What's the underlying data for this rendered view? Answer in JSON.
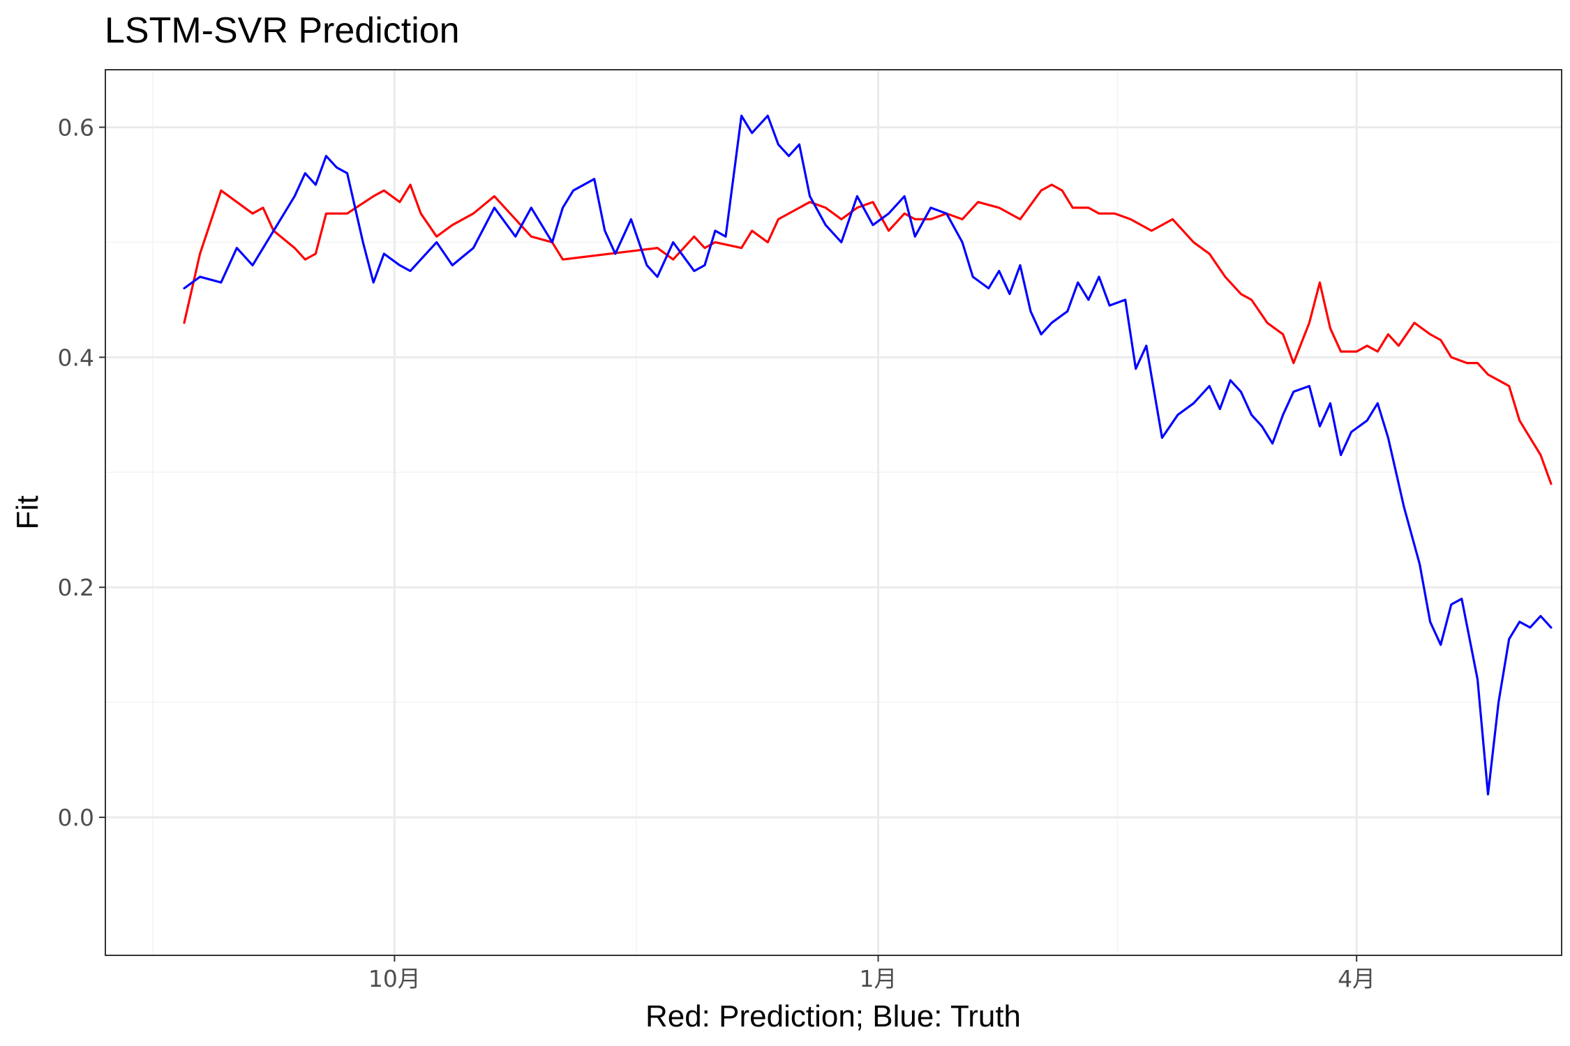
{
  "chart_data": {
    "type": "line",
    "title": "LSTM-SVR Prediction",
    "xlabel": "Red: Prediction; Blue: Truth",
    "ylabel": "Fit",
    "x_axis": {
      "type": "date",
      "range": [
        "2023-08-07",
        "2024-05-10"
      ],
      "ticks": [
        {
          "value": "2023-10-01",
          "label": "10月"
        },
        {
          "value": "2024-01-01",
          "label": "1月"
        },
        {
          "value": "2024-04-01",
          "label": "4月"
        }
      ]
    },
    "y_axis": {
      "range": [
        -0.12,
        0.65
      ],
      "ticks": [
        {
          "value": 0.0,
          "label": "0.0"
        },
        {
          "value": 0.2,
          "label": "0.2"
        },
        {
          "value": 0.4,
          "label": "0.4"
        },
        {
          "value": 0.6,
          "label": "0.6"
        }
      ]
    },
    "grid": true,
    "series": [
      {
        "color": "#ff0000",
        "points": [
          [
            "2023-08-22",
            0.43
          ],
          [
            "2023-08-25",
            0.49
          ],
          [
            "2023-08-29",
            0.545
          ],
          [
            "2023-09-01",
            0.535
          ],
          [
            "2023-09-04",
            0.525
          ],
          [
            "2023-09-06",
            0.53
          ],
          [
            "2023-09-08",
            0.51
          ],
          [
            "2023-09-12",
            0.495
          ],
          [
            "2023-09-14",
            0.485
          ],
          [
            "2023-09-16",
            0.49
          ],
          [
            "2023-09-18",
            0.525
          ],
          [
            "2023-09-22",
            0.525
          ],
          [
            "2023-09-27",
            0.54
          ],
          [
            "2023-09-29",
            0.545
          ],
          [
            "2023-10-02",
            0.535
          ],
          [
            "2023-10-04",
            0.55
          ],
          [
            "2023-10-06",
            0.525
          ],
          [
            "2023-10-09",
            0.505
          ],
          [
            "2023-10-12",
            0.515
          ],
          [
            "2023-10-16",
            0.525
          ],
          [
            "2023-10-20",
            0.54
          ],
          [
            "2023-10-24",
            0.52
          ],
          [
            "2023-10-27",
            0.505
          ],
          [
            "2023-10-31",
            0.5
          ],
          [
            "2023-11-02",
            0.485
          ],
          [
            "2023-11-20",
            0.495
          ],
          [
            "2023-11-23",
            0.485
          ],
          [
            "2023-11-27",
            0.505
          ],
          [
            "2023-11-29",
            0.495
          ],
          [
            "2023-12-01",
            0.5
          ],
          [
            "2023-12-06",
            0.495
          ],
          [
            "2023-12-08",
            0.51
          ],
          [
            "2023-12-11",
            0.5
          ],
          [
            "2023-12-13",
            0.52
          ],
          [
            "2023-12-19",
            0.535
          ],
          [
            "2023-12-22",
            0.53
          ],
          [
            "2023-12-25",
            0.52
          ],
          [
            "2023-12-28",
            0.53
          ],
          [
            "2023-12-31",
            0.535
          ],
          [
            "2024-01-03",
            0.51
          ],
          [
            "2024-01-06",
            0.525
          ],
          [
            "2024-01-08",
            0.52
          ],
          [
            "2024-01-11",
            0.52
          ],
          [
            "2024-01-14",
            0.525
          ],
          [
            "2024-01-17",
            0.52
          ],
          [
            "2024-01-20",
            0.535
          ],
          [
            "2024-01-24",
            0.53
          ],
          [
            "2024-01-28",
            0.52
          ],
          [
            "2024-02-01",
            0.545
          ],
          [
            "2024-02-03",
            0.55
          ],
          [
            "2024-02-05",
            0.545
          ],
          [
            "2024-02-07",
            0.53
          ],
          [
            "2024-02-10",
            0.53
          ],
          [
            "2024-02-12",
            0.525
          ],
          [
            "2024-02-15",
            0.525
          ],
          [
            "2024-02-18",
            0.52
          ],
          [
            "2024-02-22",
            0.51
          ],
          [
            "2024-02-26",
            0.52
          ],
          [
            "2024-03-01",
            0.5
          ],
          [
            "2024-03-04",
            0.49
          ],
          [
            "2024-03-07",
            0.47
          ],
          [
            "2024-03-10",
            0.455
          ],
          [
            "2024-03-12",
            0.45
          ],
          [
            "2024-03-15",
            0.43
          ],
          [
            "2024-03-18",
            0.42
          ],
          [
            "2024-03-20",
            0.395
          ],
          [
            "2024-03-23",
            0.43
          ],
          [
            "2024-03-25",
            0.465
          ],
          [
            "2024-03-27",
            0.425
          ],
          [
            "2024-03-29",
            0.405
          ],
          [
            "2024-04-01",
            0.405
          ],
          [
            "2024-04-03",
            0.41
          ],
          [
            "2024-04-05",
            0.405
          ],
          [
            "2024-04-07",
            0.42
          ],
          [
            "2024-04-09",
            0.41
          ],
          [
            "2024-04-12",
            0.43
          ],
          [
            "2024-04-15",
            0.42
          ],
          [
            "2024-04-17",
            0.415
          ],
          [
            "2024-04-19",
            0.4
          ],
          [
            "2024-04-22",
            0.395
          ],
          [
            "2024-04-24",
            0.395
          ],
          [
            "2024-04-26",
            0.385
          ],
          [
            "2024-04-28",
            0.38
          ],
          [
            "2024-04-30",
            0.375
          ],
          [
            "2024-05-02",
            0.345
          ],
          [
            "2024-05-04",
            0.33
          ],
          [
            "2024-05-06",
            0.315
          ],
          [
            "2024-05-08",
            0.29
          ]
        ]
      },
      {
        "color": "#0000ff",
        "points": [
          [
            "2023-08-22",
            0.46
          ],
          [
            "2023-08-25",
            0.47
          ],
          [
            "2023-08-29",
            0.465
          ],
          [
            "2023-09-01",
            0.495
          ],
          [
            "2023-09-04",
            0.48
          ],
          [
            "2023-09-08",
            0.51
          ],
          [
            "2023-09-12",
            0.54
          ],
          [
            "2023-09-14",
            0.56
          ],
          [
            "2023-09-16",
            0.55
          ],
          [
            "2023-09-18",
            0.575
          ],
          [
            "2023-09-20",
            0.565
          ],
          [
            "2023-09-22",
            0.56
          ],
          [
            "2023-09-25",
            0.5
          ],
          [
            "2023-09-27",
            0.465
          ],
          [
            "2023-09-29",
            0.49
          ],
          [
            "2023-10-02",
            0.48
          ],
          [
            "2023-10-04",
            0.475
          ],
          [
            "2023-10-06",
            0.485
          ],
          [
            "2023-10-09",
            0.5
          ],
          [
            "2023-10-12",
            0.48
          ],
          [
            "2023-10-16",
            0.495
          ],
          [
            "2023-10-20",
            0.53
          ],
          [
            "2023-10-24",
            0.505
          ],
          [
            "2023-10-27",
            0.53
          ],
          [
            "2023-10-31",
            0.5
          ],
          [
            "2023-11-02",
            0.53
          ],
          [
            "2023-11-04",
            0.545
          ],
          [
            "2023-11-08",
            0.555
          ],
          [
            "2023-11-10",
            0.51
          ],
          [
            "2023-11-12",
            0.49
          ],
          [
            "2023-11-15",
            0.52
          ],
          [
            "2023-11-18",
            0.48
          ],
          [
            "2023-11-20",
            0.47
          ],
          [
            "2023-11-23",
            0.5
          ],
          [
            "2023-11-27",
            0.475
          ],
          [
            "2023-11-29",
            0.48
          ],
          [
            "2023-12-01",
            0.51
          ],
          [
            "2023-12-03",
            0.505
          ],
          [
            "2023-12-06",
            0.61
          ],
          [
            "2023-12-08",
            0.595
          ],
          [
            "2023-12-11",
            0.61
          ],
          [
            "2023-12-13",
            0.585
          ],
          [
            "2023-12-15",
            0.575
          ],
          [
            "2023-12-17",
            0.585
          ],
          [
            "2023-12-19",
            0.54
          ],
          [
            "2023-12-22",
            0.515
          ],
          [
            "2023-12-25",
            0.5
          ],
          [
            "2023-12-28",
            0.54
          ],
          [
            "2023-12-31",
            0.515
          ],
          [
            "2024-01-03",
            0.525
          ],
          [
            "2024-01-06",
            0.54
          ],
          [
            "2024-01-08",
            0.505
          ],
          [
            "2024-01-11",
            0.53
          ],
          [
            "2024-01-14",
            0.525
          ],
          [
            "2024-01-17",
            0.5
          ],
          [
            "2024-01-19",
            0.47
          ],
          [
            "2024-01-22",
            0.46
          ],
          [
            "2024-01-24",
            0.475
          ],
          [
            "2024-01-26",
            0.455
          ],
          [
            "2024-01-28",
            0.48
          ],
          [
            "2024-01-30",
            0.44
          ],
          [
            "2024-02-01",
            0.42
          ],
          [
            "2024-02-03",
            0.43
          ],
          [
            "2024-02-06",
            0.44
          ],
          [
            "2024-02-08",
            0.465
          ],
          [
            "2024-02-10",
            0.45
          ],
          [
            "2024-02-12",
            0.47
          ],
          [
            "2024-02-14",
            0.445
          ],
          [
            "2024-02-17",
            0.45
          ],
          [
            "2024-02-19",
            0.39
          ],
          [
            "2024-02-21",
            0.41
          ],
          [
            "2024-02-24",
            0.33
          ],
          [
            "2024-02-27",
            0.35
          ],
          [
            "2024-03-01",
            0.36
          ],
          [
            "2024-03-04",
            0.375
          ],
          [
            "2024-03-06",
            0.355
          ],
          [
            "2024-03-08",
            0.38
          ],
          [
            "2024-03-10",
            0.37
          ],
          [
            "2024-03-12",
            0.35
          ],
          [
            "2024-03-14",
            0.34
          ],
          [
            "2024-03-16",
            0.325
          ],
          [
            "2024-03-18",
            0.35
          ],
          [
            "2024-03-20",
            0.37
          ],
          [
            "2024-03-23",
            0.375
          ],
          [
            "2024-03-25",
            0.34
          ],
          [
            "2024-03-27",
            0.36
          ],
          [
            "2024-03-29",
            0.315
          ],
          [
            "2024-03-31",
            0.335
          ],
          [
            "2024-04-03",
            0.345
          ],
          [
            "2024-04-05",
            0.36
          ],
          [
            "2024-04-07",
            0.33
          ],
          [
            "2024-04-10",
            0.27
          ],
          [
            "2024-04-13",
            0.22
          ],
          [
            "2024-04-15",
            0.17
          ],
          [
            "2024-04-17",
            0.15
          ],
          [
            "2024-04-19",
            0.185
          ],
          [
            "2024-04-21",
            0.19
          ],
          [
            "2024-04-24",
            0.12
          ],
          [
            "2024-04-26",
            0.02
          ],
          [
            "2024-04-28",
            0.1
          ],
          [
            "2024-04-30",
            0.155
          ],
          [
            "2024-05-02",
            0.17
          ],
          [
            "2024-05-04",
            0.165
          ],
          [
            "2024-05-06",
            0.175
          ],
          [
            "2024-05-08",
            0.165
          ]
        ]
      }
    ]
  }
}
